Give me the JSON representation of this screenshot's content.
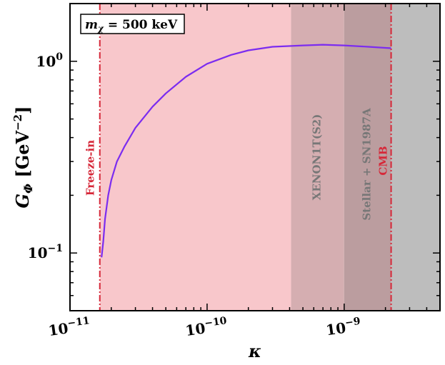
{
  "chart_data": {
    "type": "line",
    "xlabel_main": "κ",
    "ylabel_main": "G",
    "ylabel_sub": "Φ",
    "ylabel_unit": "[GeV",
    "ylabel_unit_exp": "−2",
    "ylabel_unit_close": "]",
    "xscale": "log",
    "yscale": "log",
    "xlim": [
      1e-11,
      5e-09
    ],
    "ylim": [
      0.05,
      2.0
    ],
    "x_ticks": [
      {
        "value": 1e-11,
        "base": "10",
        "exp": "−11"
      },
      {
        "value": 1e-10,
        "base": "10",
        "exp": "−10"
      },
      {
        "value": 1e-09,
        "base": "10",
        "exp": "−9"
      }
    ],
    "y_ticks": [
      {
        "value": 0.1,
        "base": "10",
        "exp": "−1"
      },
      {
        "value": 1.0,
        "base": "10",
        "exp": "0"
      }
    ],
    "annotation": {
      "symbol": "m",
      "subscript": "χ",
      "text": " = 500 keV"
    },
    "regions": [
      {
        "name": "Freeze-in",
        "x_min": 1e-11,
        "x_max": 1.65e-11,
        "color": "#ffffff",
        "label_color": "#d62839",
        "line_x": 1.65e-11
      },
      {
        "name": "",
        "x_min": 1.65e-11,
        "x_max": 4.1e-10,
        "color": "#f8c7cb"
      },
      {
        "name": "XENON1T(S2)",
        "x_min": 4.1e-10,
        "x_max": 1e-09,
        "color": "#d5aeb1",
        "label_color": "#777777"
      },
      {
        "name": "Stellar + SN1987A",
        "x_min": 1e-09,
        "x_max": 2.2e-09,
        "color": "#bb9d9f",
        "label_color": "#777777"
      },
      {
        "name": "CMB",
        "x_min": 2.2e-09,
        "x_max": 5e-09,
        "color": "#bdbdbd",
        "label_color": "#d62839",
        "line_x": 2.2e-09
      }
    ],
    "series": [
      {
        "color": "#7b2cf0",
        "x": [
          1.7e-11,
          1.75e-11,
          1.8e-11,
          1.9e-11,
          2e-11,
          2.2e-11,
          2.5e-11,
          3e-11,
          4e-11,
          5e-11,
          7e-11,
          1e-10,
          1.5e-10,
          2e-10,
          3e-10,
          5e-10,
          7e-10,
          1e-09,
          1.5e-09,
          2.2e-09
        ],
        "y": [
          0.095,
          0.115,
          0.15,
          0.2,
          0.24,
          0.3,
          0.36,
          0.45,
          0.58,
          0.68,
          0.83,
          0.97,
          1.08,
          1.14,
          1.19,
          1.21,
          1.22,
          1.21,
          1.19,
          1.17
        ]
      }
    ]
  }
}
